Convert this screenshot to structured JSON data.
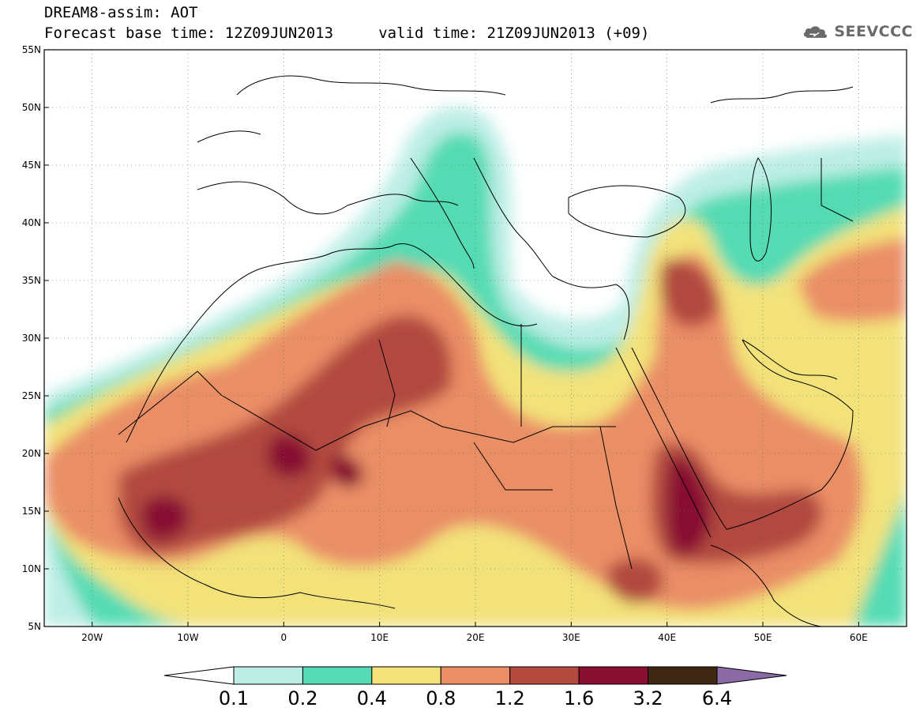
{
  "header": {
    "title_line1": "DREAM8-assim: AOT",
    "title_line2": "Forecast base time: 12Z09JUN2013     valid time: 21Z09JUN2013 (+09)",
    "logo_text": "SEEVCCC"
  },
  "map": {
    "lon_range": [
      -25,
      65
    ],
    "lat_range": [
      5,
      55
    ],
    "x_ticks": [
      {
        "lon": -20,
        "label": "20W"
      },
      {
        "lon": -10,
        "label": "10W"
      },
      {
        "lon": 0,
        "label": "0"
      },
      {
        "lon": 10,
        "label": "10E"
      },
      {
        "lon": 20,
        "label": "20E"
      },
      {
        "lon": 30,
        "label": "30E"
      },
      {
        "lon": 40,
        "label": "40E"
      },
      {
        "lon": 50,
        "label": "50E"
      },
      {
        "lon": 60,
        "label": "60E"
      }
    ],
    "y_ticks": [
      {
        "lat": 5,
        "label": "5N"
      },
      {
        "lat": 10,
        "label": "10N"
      },
      {
        "lat": 15,
        "label": "15N"
      },
      {
        "lat": 20,
        "label": "20N"
      },
      {
        "lat": 25,
        "label": "25N"
      },
      {
        "lat": 30,
        "label": "30N"
      },
      {
        "lat": 35,
        "label": "35N"
      },
      {
        "lat": 40,
        "label": "40N"
      },
      {
        "lat": 45,
        "label": "45N"
      },
      {
        "lat": 50,
        "label": "50N"
      },
      {
        "lat": 55,
        "label": "55N"
      }
    ],
    "gridlines": "dotted",
    "coastlines": "black"
  },
  "colorbar": {
    "levels": [
      "0.1",
      "0.2",
      "0.4",
      "0.8",
      "1.2",
      "1.6",
      "3.2",
      "6.4"
    ],
    "colors": [
      "#bdeee6",
      "#55dbb4",
      "#f3e27a",
      "#ea8e66",
      "#b24a40",
      "#880e32",
      "#3e2712"
    ],
    "under_color": "#ffffff",
    "over_color": "#8c6aa6"
  }
}
